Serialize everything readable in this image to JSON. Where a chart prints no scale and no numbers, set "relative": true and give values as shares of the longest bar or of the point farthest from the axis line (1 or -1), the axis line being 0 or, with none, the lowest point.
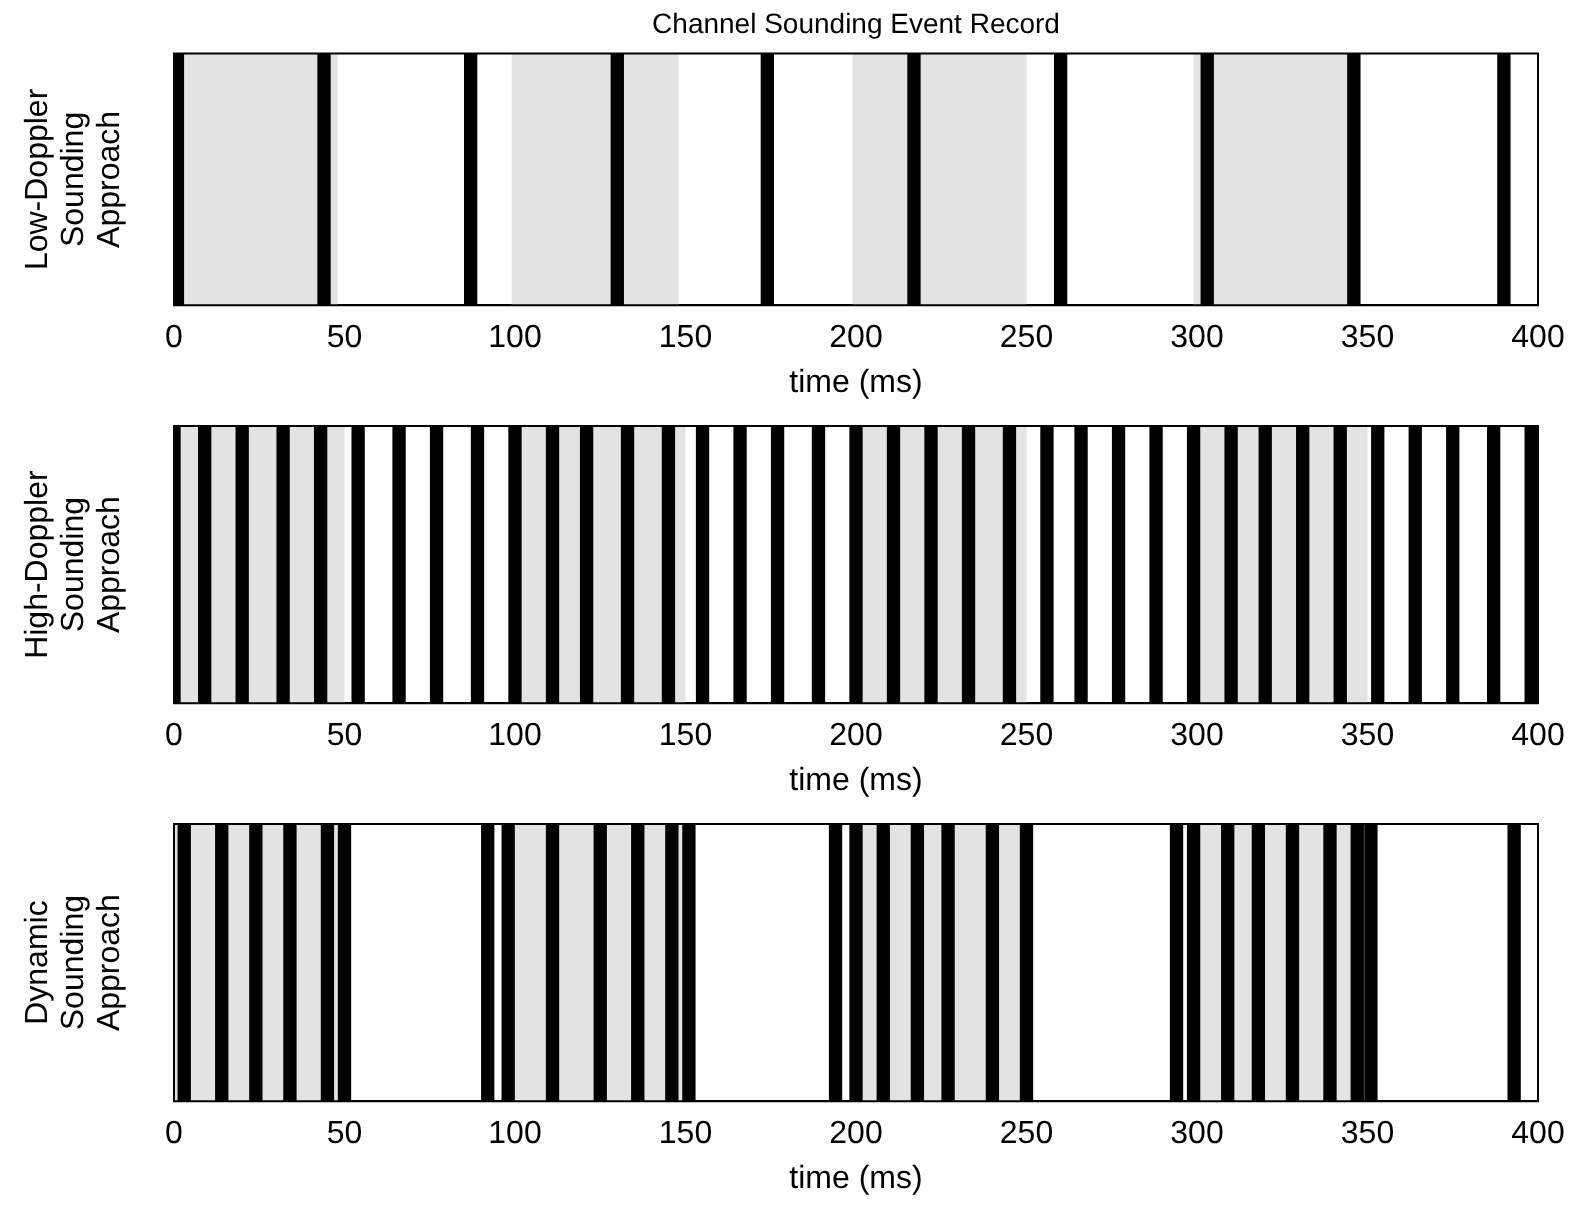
{
  "chart_data": [
    {
      "type": "bar",
      "title": "Channel Sounding Event Record",
      "xlabel": "time (ms)",
      "ylabel": "Low-Doppler Sounding Approach",
      "relative": true,
      "tick_labels": "x",
      "xlim": [
        0,
        400
      ],
      "xticks": [
        0,
        50,
        100,
        150,
        200,
        250,
        300,
        350,
        400
      ],
      "x": [
        1,
        44,
        87,
        130,
        174,
        217,
        260,
        303,
        346,
        390
      ],
      "series": [
        {
          "color": "#000000",
          "values": [
            1,
            1,
            1,
            1,
            1,
            1,
            1,
            1,
            1,
            1
          ]
        }
      ],
      "bands": [
        {
          "axis": "x",
          "from": 0,
          "to": 48,
          "color": "#e3e3e3"
        },
        {
          "axis": "x",
          "from": 99,
          "to": 148,
          "color": "#e3e3e3"
        },
        {
          "axis": "x",
          "from": 199,
          "to": 250,
          "color": "#e3e3e3"
        },
        {
          "axis": "x",
          "from": 299,
          "to": 348,
          "color": "#e3e3e3"
        }
      ]
    },
    {
      "type": "bar",
      "xlabel": "time (ms)",
      "ylabel": "High-Doppler Sounding Approach",
      "relative": true,
      "tick_labels": "x",
      "xlim": [
        0,
        400
      ],
      "xticks": [
        0,
        50,
        100,
        150,
        200,
        250,
        300,
        350,
        400
      ],
      "x": [
        0,
        9,
        20,
        32,
        43,
        54,
        66,
        77,
        89,
        100,
        111,
        121,
        133,
        145,
        155,
        166,
        177,
        189,
        200,
        211,
        222,
        233,
        245,
        256,
        266,
        277,
        288,
        299,
        310,
        320,
        331,
        342,
        353,
        364,
        375,
        387,
        398
      ],
      "series": [
        {
          "color": "#000000",
          "values": [
            1,
            1,
            1,
            1,
            1,
            1,
            1,
            1,
            1,
            1,
            1,
            1,
            1,
            1,
            1,
            1,
            1,
            1,
            1,
            1,
            1,
            1,
            1,
            1,
            1,
            1,
            1,
            1,
            1,
            1,
            1,
            1,
            1,
            1,
            1,
            1,
            1
          ]
        }
      ],
      "bands": [
        {
          "axis": "x",
          "from": 0,
          "to": 50,
          "color": "#e3e3e3"
        },
        {
          "axis": "x",
          "from": 100,
          "to": 150,
          "color": "#e3e3e3"
        },
        {
          "axis": "x",
          "from": 200,
          "to": 250,
          "color": "#e3e3e3"
        },
        {
          "axis": "x",
          "from": 300,
          "to": 350,
          "color": "#e3e3e3"
        }
      ]
    },
    {
      "type": "bar",
      "xlabel": "time (ms)",
      "ylabel": "Dynamic Sounding Approach",
      "relative": true,
      "tick_labels": "x",
      "xlim": [
        0,
        400
      ],
      "xticks": [
        0,
        50,
        100,
        150,
        200,
        250,
        300,
        350,
        400
      ],
      "x": [
        3,
        14,
        24,
        34,
        45,
        50,
        92,
        98,
        111,
        125,
        136,
        146,
        151,
        194,
        200,
        208,
        218,
        227,
        240,
        250,
        294,
        299,
        309,
        318,
        328,
        339,
        347,
        351,
        393
      ],
      "series": [
        {
          "color": "#000000",
          "values": [
            1,
            1,
            1,
            1,
            1,
            1,
            1,
            1,
            1,
            1,
            1,
            1,
            1,
            1,
            1,
            1,
            1,
            1,
            1,
            1,
            1,
            1,
            1,
            1,
            1,
            1,
            1,
            1,
            1
          ]
        }
      ],
      "bands": [
        {
          "axis": "x",
          "from": 0,
          "to": 50,
          "color": "#e3e3e3"
        },
        {
          "axis": "x",
          "from": 97,
          "to": 150,
          "color": "#e3e3e3"
        },
        {
          "axis": "x",
          "from": 200,
          "to": 250,
          "color": "#e3e3e3"
        },
        {
          "axis": "x",
          "from": 297,
          "to": 350,
          "color": "#e3e3e3"
        }
      ]
    }
  ]
}
